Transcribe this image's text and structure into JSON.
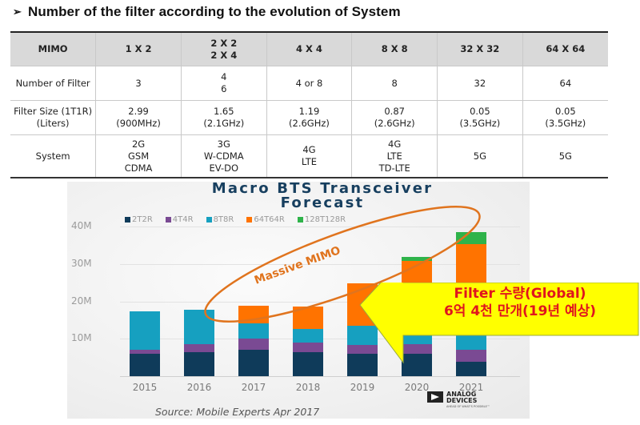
{
  "heading": {
    "bullet": "➢",
    "text": "Number of the filter according to the evolution of System"
  },
  "table": {
    "headers": [
      "MIMO",
      "1 X 2",
      "2 X 2\n2 X 4",
      "4 X 4",
      "8 X 8",
      "32 X 32",
      "64 X 64"
    ],
    "rows": [
      [
        "Number of Filter",
        "3",
        "4\n6",
        "4 or 8",
        "8",
        "32",
        "64"
      ],
      [
        "Filter Size (1T1R)\n(Liters)",
        "2.99\n(900MHz)",
        "1.65\n(2.1GHz)",
        "1.19\n(2.6GHz)",
        "0.87\n(2.6GHz)",
        "0.05\n(3.5GHz)",
        "0.05\n(3.5GHz)"
      ],
      [
        "System",
        "2G\nGSM\nCDMA",
        "3G\nW-CDMA\nEV-DO",
        "4G\nLTE",
        "4G\nLTE\nTD-LTE",
        "5G",
        "5G"
      ]
    ]
  },
  "chart_data": {
    "type": "bar",
    "stacked": true,
    "title": "Macro BTS Transceiver Forecast",
    "xlabel": "",
    "ylabel": "",
    "ylim": [
      0,
      40
    ],
    "y_ticks": [
      "10M",
      "20M",
      "30M",
      "40M"
    ],
    "categories": [
      "2015",
      "2016",
      "2017",
      "2018",
      "2019",
      "2020",
      "2021"
    ],
    "series": [
      {
        "name": "2T2R",
        "color": "#0f3b5a",
        "values": [
          6.0,
          6.4,
          7.1,
          6.4,
          6.0,
          6.0,
          3.9
        ]
      },
      {
        "name": "4T4R",
        "color": "#7a4a93",
        "values": [
          1.1,
          2.1,
          3.0,
          2.6,
          2.4,
          2.6,
          3.2
        ]
      },
      {
        "name": "8T8R",
        "color": "#16a0c0",
        "values": [
          10.3,
          9.2,
          4.1,
          3.6,
          5.1,
          6.5,
          5.1
        ]
      },
      {
        "name": "64T64R",
        "color": "#ff7300",
        "values": [
          0,
          0,
          4.7,
          6.0,
          11.3,
          15.7,
          23.1
        ]
      },
      {
        "name": "128T128R",
        "color": "#2fb34a",
        "values": [
          0,
          0,
          0,
          0,
          0,
          1.0,
          3.2
        ]
      }
    ],
    "legend_position": "top",
    "grid": true,
    "annotations": [
      {
        "text": "Massive MIMO",
        "type": "ellipse",
        "color": "#e0741e"
      },
      {
        "text": "Filter 수량(Global)\n6억 4천 만개(19년 예상)",
        "type": "arrow-callout",
        "points_to": "2019",
        "fill": "#ffff00",
        "text_color": "#e0141e"
      }
    ],
    "source": "Source: Mobile Experts Apr 2017"
  },
  "chart_ui": {
    "title_line1": "Macro BTS Transceiver",
    "title_line2": "Forecast",
    "massive_mimo_label": "Massive MIMO",
    "callout_line1": "Filter 수량(Global)",
    "callout_line2": "6억 4천 만개(19년 예상)",
    "source": "Source: Mobile Experts Apr 2017",
    "logo_line1": "ANALOG",
    "logo_line2": "DEVICES",
    "logo_tagline": "AHEAD OF WHAT'S POSSIBLE™"
  }
}
